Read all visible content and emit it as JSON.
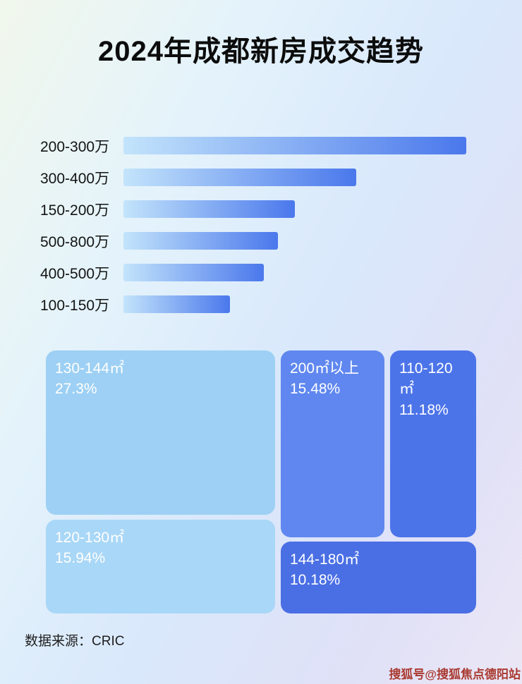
{
  "title": "2024年成都新房成交趋势",
  "chart_data": [
    {
      "type": "bar",
      "orientation": "horizontal",
      "categories": [
        "200-300万",
        "300-400万",
        "150-200万",
        "500-800万",
        "400-500万",
        "100-150万"
      ],
      "values": [
        100,
        68,
        50,
        45,
        41,
        31
      ],
      "value_meaning": "bar length as percent of longest bar (no numeric labels shown in image)",
      "xlabel": "",
      "ylabel": "",
      "grid": false,
      "legend": false,
      "bar_gradient": [
        "#c3e4fb",
        "#4a78ec"
      ]
    },
    {
      "type": "treemap",
      "items": [
        {
          "label": "130-144㎡",
          "value": "27.3%",
          "color": "#9dd0f4"
        },
        {
          "label": "200㎡以上",
          "value": "15.48%",
          "color": "#5f87ef"
        },
        {
          "label": "110-120㎡",
          "value": "11.18%",
          "color": "#4c74e9"
        },
        {
          "label": "120-130㎡",
          "value": "15.94%",
          "color": "#a9d7f7"
        },
        {
          "label": "144-180㎡",
          "value": "10.18%",
          "color": "#4a6fe4"
        }
      ]
    }
  ],
  "footer": {
    "source": "数据来源：CRIC"
  },
  "watermark": "搜狐号@搜狐焦点德阳站"
}
